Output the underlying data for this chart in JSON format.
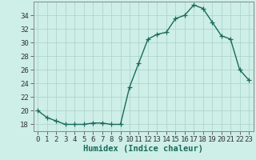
{
  "x": [
    0,
    1,
    2,
    3,
    4,
    5,
    6,
    7,
    8,
    9,
    10,
    11,
    12,
    13,
    14,
    15,
    16,
    17,
    18,
    19,
    20,
    21,
    22,
    23
  ],
  "y": [
    20,
    19,
    18.5,
    18,
    18,
    18,
    18.2,
    18.2,
    18,
    18,
    23.5,
    27,
    30.5,
    31.2,
    31.5,
    33.5,
    34,
    35.5,
    35,
    33,
    31,
    30.5,
    26,
    24.5
  ],
  "line_color": "#1a6b5a",
  "marker": "+",
  "marker_color": "#1a6b5a",
  "bg_color": "#ceeee8",
  "grid_color": "#aed4ce",
  "xlabel": "Humidex (Indice chaleur)",
  "ylim": [
    17,
    36
  ],
  "yticks": [
    18,
    20,
    22,
    24,
    26,
    28,
    30,
    32,
    34
  ],
  "xticks": [
    0,
    1,
    2,
    3,
    4,
    5,
    6,
    7,
    8,
    9,
    10,
    11,
    12,
    13,
    14,
    15,
    16,
    17,
    18,
    19,
    20,
    21,
    22,
    23
  ],
  "xlabel_fontsize": 7.5,
  "tick_fontsize": 6.5,
  "line_width": 1.0,
  "marker_size": 4
}
